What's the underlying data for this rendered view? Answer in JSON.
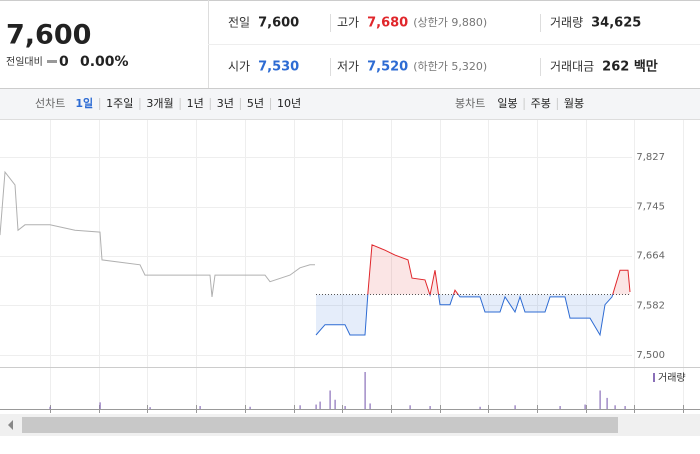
{
  "header": {
    "price": "7,600",
    "change_label": "전일대비",
    "change": "0",
    "change_pct": "0.00%",
    "stats": [
      {
        "label": "전일",
        "value": "7,600"
      },
      {
        "label": "고가",
        "value": "7,680",
        "note": "(상한가 9,880)"
      },
      {
        "label": "거래량",
        "value": "34,625"
      },
      {
        "label": "시가",
        "value": "7,530"
      },
      {
        "label": "저가",
        "value": "7,520",
        "note": "(하한가 5,320)"
      },
      {
        "label": "거래대금",
        "value": "262 백만"
      }
    ]
  },
  "toolbar": {
    "line_label": "선차트",
    "line_tabs": [
      "1일",
      "1주일",
      "3개월",
      "1년",
      "3년",
      "5년",
      "10년"
    ],
    "candle_label": "봉차트",
    "candle_tabs": [
      "일봉",
      "주봉",
      "월봉"
    ]
  },
  "chart_data": {
    "type": "line",
    "base": 7600,
    "up_color": "#e0262b",
    "down_color": "#2d6bd3",
    "ylim": [
      7500,
      7827
    ],
    "yticks": [
      {
        "value": 7500,
        "label": "7,500"
      },
      {
        "value": 7582,
        "label": "7,582"
      },
      {
        "value": 7664,
        "label": "7,664"
      },
      {
        "value": 7745,
        "label": "7,745"
      },
      {
        "value": 7827,
        "label": "7,827"
      }
    ],
    "xlim": [
      0,
      700
    ],
    "series": [
      {
        "color": "#b0b0b0",
        "x": [
          0,
          5,
          15,
          18,
          25,
          50,
          75,
          100,
          102,
          140,
          145,
          175,
          210,
          212,
          215,
          265,
          270,
          290,
          300,
          310,
          315
        ],
        "values": [
          7698,
          7802,
          7781,
          7706,
          7715,
          7715,
          7706,
          7703,
          7657,
          7649,
          7632,
          7632,
          7632,
          7596,
          7632,
          7632,
          7621,
          7632,
          7644,
          7649,
          7649
        ]
      },
      {
        "color": "split",
        "x": [
          316,
          325,
          345,
          350,
          365,
          368,
          372,
          385,
          395,
          408,
          412,
          425,
          430,
          435,
          440,
          450,
          455,
          460,
          480,
          485,
          500,
          505,
          515,
          520,
          525,
          545,
          550,
          565,
          570,
          590,
          600,
          605,
          612,
          620,
          628,
          630
        ],
        "values": [
          7533,
          7550,
          7550,
          7533,
          7533,
          7604,
          7682,
          7673,
          7665,
          7657,
          7627,
          7624,
          7599,
          7640,
          7583,
          7583,
          7607,
          7596,
          7596,
          7571,
          7571,
          7596,
          7571,
          7596,
          7571,
          7571,
          7596,
          7596,
          7561,
          7561,
          7533,
          7583,
          7596,
          7640,
          7640,
          7604
        ]
      }
    ],
    "volume": {
      "label": "거래량",
      "color": "#8a6fb8",
      "ylim": [
        0,
        100
      ],
      "x": [
        50,
        100,
        150,
        200,
        250,
        300,
        316,
        320,
        330,
        335,
        345,
        365,
        370,
        410,
        430,
        480,
        515,
        560,
        585,
        600,
        607,
        615,
        625
      ],
      "values": [
        6,
        18,
        5,
        8,
        6,
        10,
        12,
        20,
        50,
        25,
        8,
        100,
        15,
        10,
        8,
        6,
        10,
        8,
        12,
        50,
        30,
        10,
        8
      ]
    }
  }
}
